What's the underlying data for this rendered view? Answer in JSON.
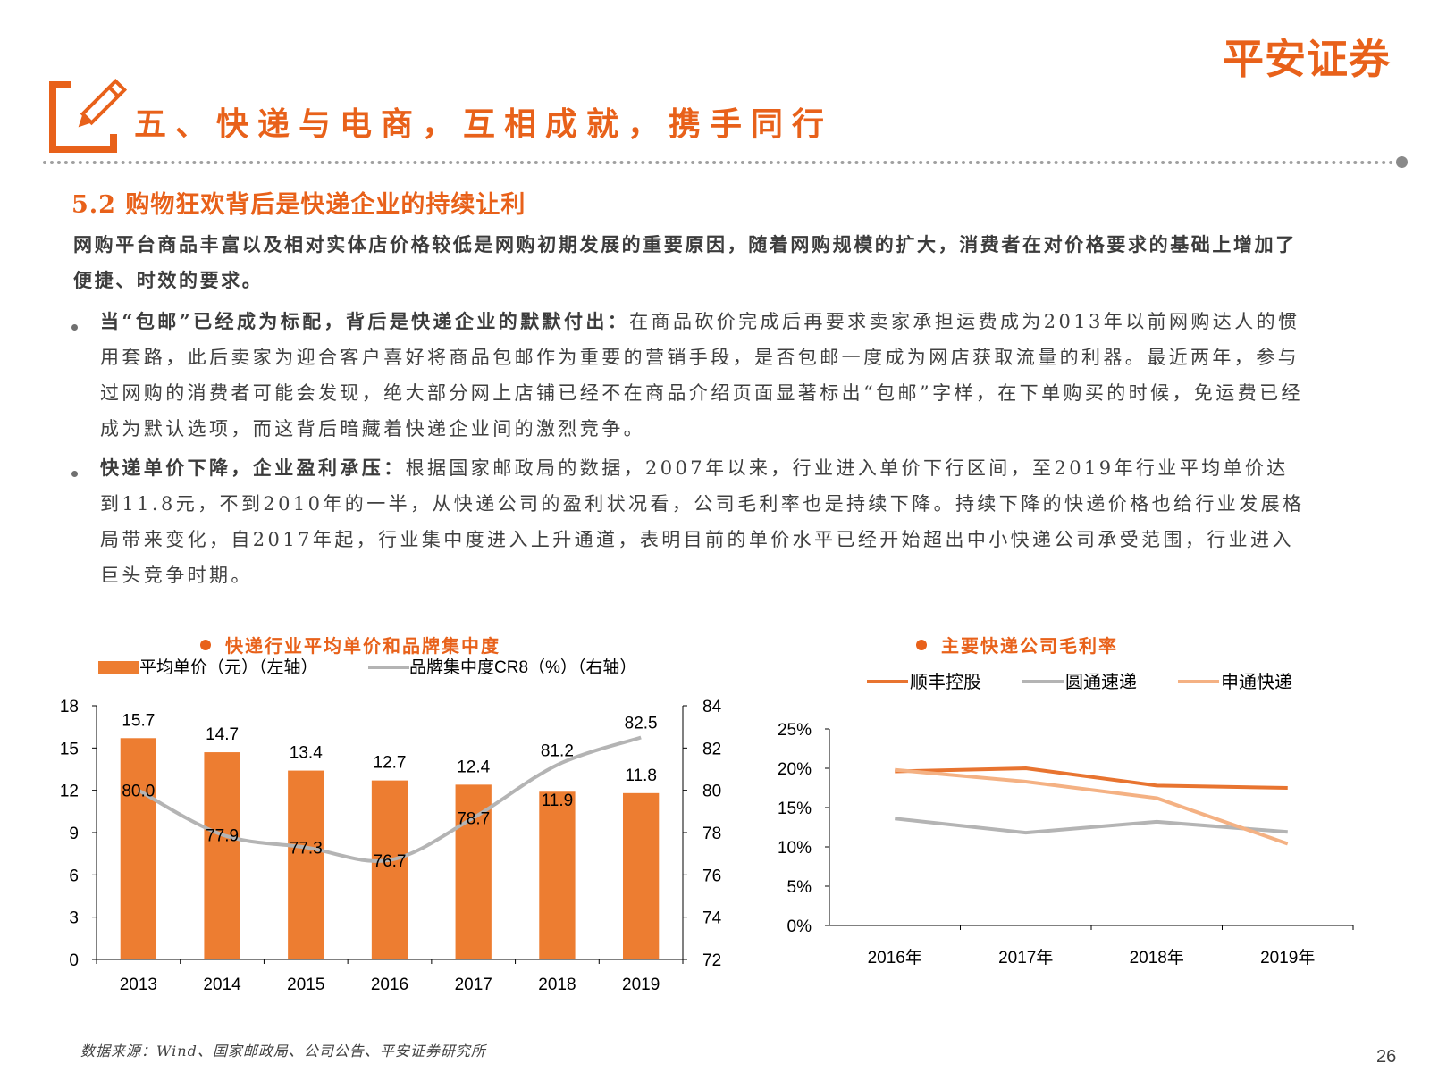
{
  "brand": {
    "logo_text": "平安证券"
  },
  "header": {
    "title": "五、快递与电商，互相成就，携手同行",
    "icon": "edit-pencil-icon",
    "accent_color": "#e8611a"
  },
  "section": {
    "heading": "5.2 购物狂欢背后是快递企业的持续让利",
    "intro": "网购平台商品丰富以及相对实体店价格较低是网购初期发展的重要原因，随着网购规模的扩大，消费者在对价格要求的基础上增加了便捷、时效的要求。",
    "bullets": [
      {
        "lead": "当“包邮”已经成为标配，背后是快递企业的默默付出：",
        "text": "在商品砍价完成后再要求卖家承担运费成为2013年以前网购达人的惯用套路，此后卖家为迎合客户喜好将商品包邮作为重要的营销手段，是否包邮一度成为网店获取流量的利器。最近两年，参与过网购的消费者可能会发现，绝大部分网上店铺已经不在商品介绍页面显著标出“包邮”字样，在下单购买的时候，免运费已经成为默认选项，而这背后暗藏着快递企业间的激烈竞争。"
      },
      {
        "lead": "快递单价下降，企业盈利承压：",
        "text": "根据国家邮政局的数据，2007年以来，行业进入单价下行区间，至2019年行业平均单价达到11.8元，不到2010年的一半，从快递公司的盈利状况看，公司毛利率也是持续下降。持续下降的快递价格也给行业发展格局带来变化，自2017年起，行业集中度进入上升通道，表明目前的单价水平已经开始超出中小快递公司承受范围，行业进入巨头竞争时期。"
      }
    ]
  },
  "chart_data": [
    {
      "type": "bar",
      "title": "快递行业平均单价和品牌集中度",
      "categories": [
        "2013",
        "2014",
        "2015",
        "2016",
        "2017",
        "2018",
        "2019"
      ],
      "series": [
        {
          "name": "平均单价（元）（左轴）",
          "type": "bar",
          "axis": "left",
          "color": "#ed7d31",
          "values": [
            15.7,
            14.7,
            13.4,
            12.7,
            12.4,
            11.9,
            11.8
          ]
        },
        {
          "name": "品牌集中度CR8（%）（右轴）",
          "type": "line",
          "axis": "right",
          "color": "#b4b4b4",
          "values": [
            80.0,
            77.9,
            77.3,
            76.7,
            78.7,
            81.2,
            82.5
          ]
        }
      ],
      "y_left": {
        "range": [
          0,
          18
        ],
        "ticks": [
          "0",
          "3",
          "6",
          "9",
          "12",
          "15",
          "18"
        ]
      },
      "y_right": {
        "range": [
          72,
          84
        ],
        "ticks": [
          "72",
          "74",
          "76",
          "78",
          "80",
          "82",
          "84"
        ]
      },
      "bar_labels": [
        "15.7",
        "14.7",
        "13.4",
        "12.7",
        "12.4",
        "11.9",
        "11.8"
      ],
      "line_labels": [
        "80.0",
        "77.9",
        "77.3",
        "76.7",
        "78.7",
        "81.2",
        "82.5"
      ],
      "legend_position": "top",
      "grid": false
    },
    {
      "type": "line",
      "title": "主要快递公司毛利率",
      "categories": [
        "2016年",
        "2017年",
        "2018年",
        "2019年"
      ],
      "series": [
        {
          "name": "顺丰控股",
          "color": "#e87430",
          "values": [
            19.6,
            20.0,
            17.8,
            17.5
          ]
        },
        {
          "name": "圆通速递",
          "color": "#b4b4b4",
          "values": [
            13.6,
            11.8,
            13.2,
            11.9
          ]
        },
        {
          "name": "申通快递",
          "color": "#f4b183",
          "values": [
            19.8,
            18.3,
            16.2,
            10.4
          ]
        }
      ],
      "y": {
        "range": [
          0,
          25
        ],
        "ticks": [
          "0%",
          "5%",
          "10%",
          "15%",
          "20%",
          "25%"
        ]
      },
      "legend_position": "top",
      "grid": false
    }
  ],
  "footer": {
    "source": "数据来源：Wind、国家邮政局、公司公告、平安证券研究所",
    "page_number": "26"
  }
}
